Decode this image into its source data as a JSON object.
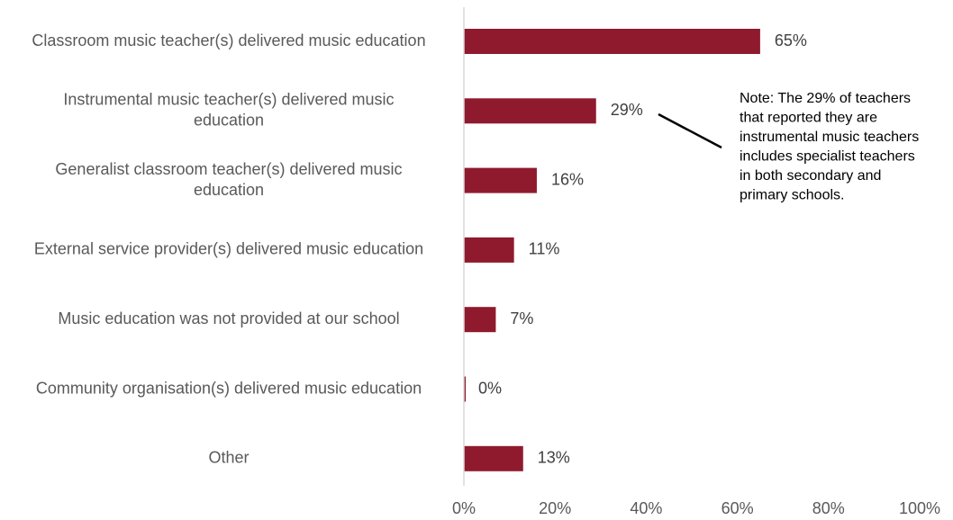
{
  "chart_data": {
    "type": "bar",
    "orientation": "horizontal",
    "categories": [
      [
        "Classroom music teacher(s) delivered music education"
      ],
      [
        "Instrumental music teacher(s) delivered music",
        "education"
      ],
      [
        "Generalist classroom teacher(s) delivered music",
        "education"
      ],
      [
        "External service provider(s) delivered music education"
      ],
      [
        "Music education was not provided at our school"
      ],
      [
        "Community organisation(s) delivered music education"
      ],
      [
        "Other"
      ]
    ],
    "values": [
      65,
      29,
      16,
      11,
      7,
      0,
      13
    ],
    "value_labels": [
      "65%",
      "29%",
      "16%",
      "11%",
      "7%",
      "0%",
      "13%"
    ],
    "xlim": [
      0,
      100
    ],
    "xticks": [
      0,
      20,
      40,
      60,
      80,
      100
    ],
    "xtick_labels": [
      "0%",
      "20%",
      "40%",
      "60%",
      "80%",
      "100%"
    ],
    "bar_color": "#8f1a2e",
    "axis_color": "#d9d9d9",
    "grid": false,
    "annotation": {
      "target_category_index": 1,
      "lines": [
        "Note: The 29% of teachers",
        "that reported they are",
        "instrumental music teachers",
        "includes specialist teachers",
        "in both secondary and",
        "primary schools."
      ]
    }
  }
}
